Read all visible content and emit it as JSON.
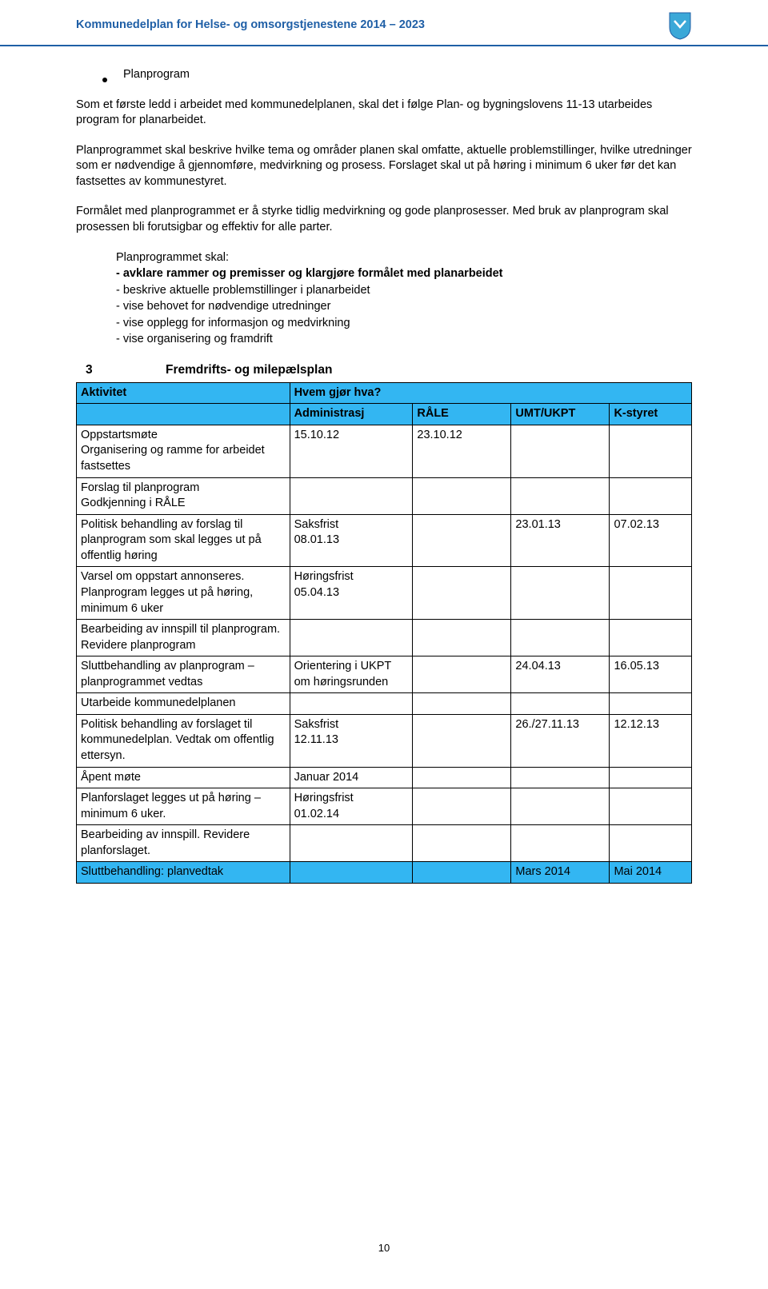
{
  "header": {
    "title": "Kommunedelplan for Helse- og omsorgstjenestene  2014 – 2023"
  },
  "bullet1": "Planprogram",
  "para1": "Som et første ledd i arbeidet med kommunedelplanen, skal det i følge Plan- og bygningslovens 11-13 utarbeides program for planarbeidet.",
  "para2": "Planprogrammet skal beskrive hvilke tema og områder planen skal omfatte, aktuelle problemstillinger, hvilke utredninger som er nødvendige å gjennomføre, medvirkning og prosess. Forslaget skal ut på høring i minimum 6 uker før det kan fastsettes av kommunestyret.",
  "para3": "Formålet med planprogrammet er å styrke tidlig medvirkning og gode planprosesser. Med bruk av planprogram skal prosessen bli forutsigbar og effektiv for alle parter.",
  "list_intro": "Planprogrammet skal:",
  "list_items": [
    "- avklare rammer og premisser og klargjøre formålet med planarbeidet",
    "- beskrive aktuelle problemstillinger i planarbeidet",
    "- vise behovet for nødvendige utredninger",
    "- vise opplegg for informasjon og medvirkning",
    "- vise organisering og framdrift"
  ],
  "section": {
    "num": "3",
    "title": "Fremdrifts- og milepælsplan"
  },
  "table": {
    "header1": {
      "activity": "Aktivitet",
      "who": "Hvem gjør hva?"
    },
    "header2": {
      "c1": "Administrasj",
      "c2": "RÅLE",
      "c3": "UMT/UKPT",
      "c4": "K-styret"
    },
    "rows": [
      {
        "act": "Oppstartsmøte\nOrganisering og ramme for arbeidet fastsettes",
        "c1": "15.10.12",
        "c2": "23.10.12",
        "c3": "",
        "c4": ""
      },
      {
        "act": "Forslag til planprogram\nGodkjenning i RÅLE",
        "c1": "",
        "c2": "",
        "c3": "",
        "c4": ""
      },
      {
        "act": "Politisk behandling av forslag til planprogram som skal legges ut på\noffentlig høring",
        "c1": "Saksfrist\n08.01.13",
        "c2": "",
        "c3": "23.01.13",
        "c4": "07.02.13"
      },
      {
        "act": "Varsel om oppstart annonseres. Planprogram legges ut på høring, minimum 6 uker",
        "c1": "Høringsfrist\n05.04.13",
        "c2": "",
        "c3": "",
        "c4": ""
      },
      {
        "act": "Bearbeiding av innspill til planprogram. Revidere planprogram",
        "c1": "",
        "c2": "",
        "c3": "",
        "c4": ""
      },
      {
        "act": "Sluttbehandling av planprogram – planprogrammet vedtas",
        "c1": "Orientering i UKPT om høringsrunden",
        "c2": "",
        "c3": "24.04.13",
        "c4": "16.05.13"
      },
      {
        "act": "Utarbeide kommunedelplanen",
        "c1": "",
        "c2": "",
        "c3": "",
        "c4": ""
      },
      {
        "act": "Politisk behandling av forslaget til kommunedelplan. Vedtak om offentlig ettersyn.",
        "c1": "Saksfrist\n12.11.13",
        "c2": "",
        "c3": "26./27.11.13",
        "c4": "12.12.13"
      },
      {
        "act": "Åpent møte",
        "c1": "Januar 2014",
        "c2": "",
        "c3": "",
        "c4": ""
      },
      {
        "act": "Planforslaget legges ut på høring –\nminimum 6 uker.",
        "c1": "Høringsfrist\n01.02.14",
        "c2": "",
        "c3": "",
        "c4": ""
      },
      {
        "act": "Bearbeiding av innspill. Revidere planforslaget.",
        "c1": "",
        "c2": "",
        "c3": "",
        "c4": ""
      }
    ],
    "lastrow": {
      "act": "Sluttbehandling: planvedtak",
      "c1": "",
      "c2": "",
      "c3": "Mars 2014",
      "c4": "Mai 2014"
    }
  },
  "pagenum": "10",
  "colors": {
    "header_blue": "#1f5fa6",
    "table_blue": "#33b6f2"
  }
}
